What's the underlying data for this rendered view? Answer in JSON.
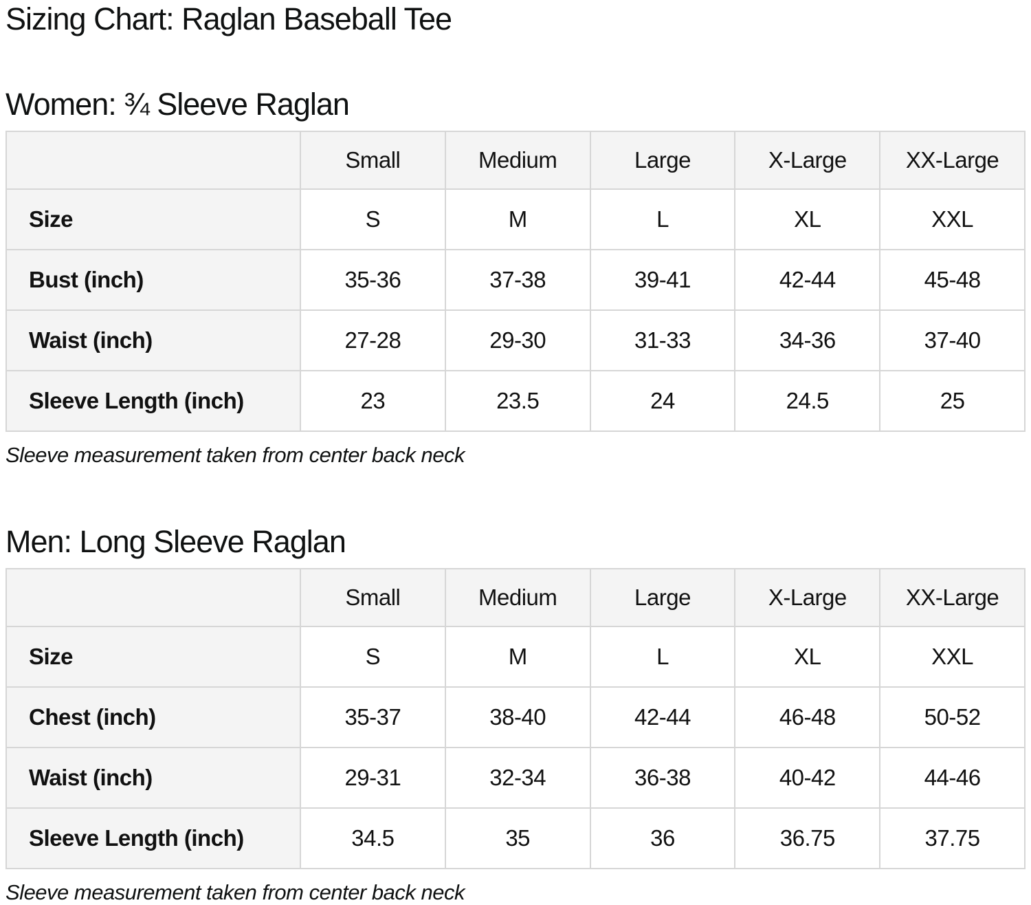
{
  "page_title": "Sizing Chart: Raglan Baseball Tee",
  "colors": {
    "header_bg": "#f4f4f4",
    "border": "#d6d6d6",
    "text": "#0f1111",
    "cell_bg": "#ffffff"
  },
  "chart_data": [
    {
      "type": "table",
      "title": "Women: ¾ Sleeve Raglan",
      "columns": [
        "",
        "Small",
        "Medium",
        "Large",
        "X-Large",
        "XX-Large"
      ],
      "rows": [
        {
          "label": "Size",
          "values": [
            "S",
            "M",
            "L",
            "XL",
            "XXL"
          ]
        },
        {
          "label": "Bust (inch)",
          "values": [
            "35-36",
            "37-38",
            "39-41",
            "42-44",
            "45-48"
          ]
        },
        {
          "label": "Waist (inch)",
          "values": [
            "27-28",
            "29-30",
            "31-33",
            "34-36",
            "37-40"
          ]
        },
        {
          "label": "Sleeve Length (inch)",
          "values": [
            "23",
            "23.5",
            "24",
            "24.5",
            "25"
          ]
        }
      ],
      "footnote": "Sleeve measurement taken from center back neck"
    },
    {
      "type": "table",
      "title": "Men: Long Sleeve Raglan",
      "columns": [
        "",
        "Small",
        "Medium",
        "Large",
        "X-Large",
        "XX-Large"
      ],
      "rows": [
        {
          "label": "Size",
          "values": [
            "S",
            "M",
            "L",
            "XL",
            "XXL"
          ]
        },
        {
          "label": "Chest (inch)",
          "values": [
            "35-37",
            "38-40",
            "42-44",
            "46-48",
            "50-52"
          ]
        },
        {
          "label": "Waist (inch)",
          "values": [
            "29-31",
            "32-34",
            "36-38",
            "40-42",
            "44-46"
          ]
        },
        {
          "label": "Sleeve Length (inch)",
          "values": [
            "34.5",
            "35",
            "36",
            "36.75",
            "37.75"
          ]
        }
      ],
      "footnote": "Sleeve measurement taken from center back neck"
    }
  ]
}
